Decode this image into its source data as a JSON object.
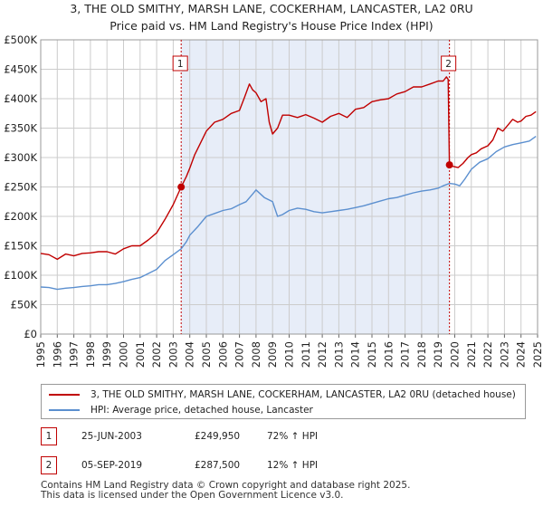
{
  "chart_data": {
    "type": "line",
    "title": "3, THE OLD SMITHY, MARSH LANE, COCKERHAM, LANCASTER, LA2 0RU",
    "subtitle": "Price paid vs. HM Land Registry's House Price Index (HPI)",
    "xlabel": "",
    "ylabel": "",
    "xlim": [
      1995,
      2025
    ],
    "ylim": [
      0,
      500000
    ],
    "x_ticks": [
      1995,
      1996,
      1997,
      1998,
      1999,
      2000,
      2001,
      2002,
      2003,
      2004,
      2005,
      2006,
      2007,
      2008,
      2009,
      2010,
      2011,
      2012,
      2013,
      2014,
      2015,
      2016,
      2017,
      2018,
      2019,
      2020,
      2021,
      2022,
      2023,
      2024,
      2025
    ],
    "y_ticks": [
      {
        "value": 0,
        "label": "£0"
      },
      {
        "value": 50000,
        "label": "£50K"
      },
      {
        "value": 100000,
        "label": "£100K"
      },
      {
        "value": 150000,
        "label": "£150K"
      },
      {
        "value": 200000,
        "label": "£200K"
      },
      {
        "value": 250000,
        "label": "£250K"
      },
      {
        "value": 300000,
        "label": "£300K"
      },
      {
        "value": 350000,
        "label": "£350K"
      },
      {
        "value": 400000,
        "label": "£400K"
      },
      {
        "value": 450000,
        "label": "£450K"
      },
      {
        "value": 500000,
        "label": "£500K"
      }
    ],
    "grid": true,
    "shaded_region": [
      2003.48,
      2019.68
    ],
    "series": [
      {
        "name": "3, THE OLD SMITHY, MARSH LANE, COCKERHAM, LANCASTER, LA2 0RU (detached house)",
        "color": "#c00000",
        "x": [
          1995,
          1995.5,
          1996,
          1996.5,
          1997,
          1997.5,
          1998,
          1998.5,
          1999,
          1999.5,
          2000,
          2000.5,
          2001,
          2001.5,
          2002,
          2002.5,
          2003,
          2003.48,
          2003.8,
          2004,
          2004.3,
          2004.6,
          2005,
          2005.5,
          2006,
          2006.5,
          2007,
          2007.3,
          2007.6,
          2007.8,
          2008,
          2008.3,
          2008.6,
          2008.8,
          2009,
          2009.3,
          2009.6,
          2010,
          2010.5,
          2011,
          2011.5,
          2012,
          2012.5,
          2013,
          2013.5,
          2014,
          2014.5,
          2015,
          2015.5,
          2016,
          2016.5,
          2017,
          2017.5,
          2018,
          2018.5,
          2019,
          2019.3,
          2019.5,
          2019.6,
          2019.68,
          2019.9,
          2020.2,
          2020.5,
          2020.8,
          2021,
          2021.3,
          2021.6,
          2022,
          2022.3,
          2022.6,
          2022.9,
          2023.2,
          2023.5,
          2023.8,
          2024,
          2024.3,
          2024.6,
          2024.9
        ],
        "y": [
          137000,
          135000,
          127000,
          136000,
          133000,
          137000,
          138000,
          140000,
          140000,
          136000,
          145000,
          150000,
          150000,
          160000,
          172000,
          195000,
          220000,
          249950,
          268000,
          282000,
          305000,
          322000,
          345000,
          360000,
          365000,
          375000,
          380000,
          402000,
          425000,
          415000,
          410000,
          395000,
          400000,
          360000,
          340000,
          350000,
          372000,
          372000,
          368000,
          373000,
          367000,
          360000,
          370000,
          375000,
          368000,
          382000,
          385000,
          395000,
          398000,
          400000,
          408000,
          412000,
          420000,
          420000,
          425000,
          430000,
          430000,
          437000,
          433000,
          287500,
          285000,
          283000,
          290000,
          300000,
          305000,
          308000,
          315000,
          320000,
          330000,
          350000,
          345000,
          355000,
          365000,
          360000,
          362000,
          370000,
          372000,
          378000
        ]
      },
      {
        "name": "HPI: Average price, detached house, Lancaster",
        "color": "#5b8fcf",
        "x": [
          1995,
          1995.5,
          1996,
          1996.5,
          1997,
          1997.5,
          1998,
          1998.5,
          1999,
          1999.5,
          2000,
          2000.5,
          2001,
          2001.5,
          2002,
          2002.5,
          2003,
          2003.48,
          2003.8,
          2004,
          2004.5,
          2005,
          2005.5,
          2006,
          2006.5,
          2007,
          2007.4,
          2007.8,
          2008,
          2008.5,
          2009,
          2009.3,
          2009.6,
          2010,
          2010.5,
          2011,
          2011.5,
          2012,
          2012.5,
          2013,
          2013.5,
          2014,
          2014.5,
          2015,
          2015.5,
          2016,
          2016.5,
          2017,
          2017.5,
          2018,
          2018.5,
          2019,
          2019.3,
          2019.68,
          2020,
          2020.3,
          2020.6,
          2021,
          2021.5,
          2022,
          2022.5,
          2023,
          2023.5,
          2024,
          2024.5,
          2024.9
        ],
        "y": [
          80000,
          79000,
          76000,
          78000,
          79000,
          81000,
          82000,
          84000,
          84000,
          86000,
          89000,
          93000,
          96000,
          103000,
          110000,
          125000,
          135000,
          145000,
          157000,
          168000,
          183000,
          200000,
          205000,
          210000,
          213000,
          220000,
          225000,
          238000,
          245000,
          232000,
          225000,
          200000,
          203000,
          210000,
          214000,
          212000,
          208000,
          206000,
          208000,
          210000,
          212000,
          215000,
          218000,
          222000,
          226000,
          230000,
          232000,
          236000,
          240000,
          243000,
          245000,
          248000,
          252000,
          256000,
          255000,
          252000,
          263000,
          280000,
          292000,
          298000,
          310000,
          318000,
          322000,
          325000,
          328000,
          336000
        ]
      }
    ],
    "annotations": [
      {
        "label": "1",
        "x": 2003.48,
        "y": 249950
      },
      {
        "label": "2",
        "x": 2019.68,
        "y": 287500
      }
    ]
  },
  "legend": {
    "items": [
      {
        "label": "3, THE OLD SMITHY, MARSH LANE, COCKERHAM, LANCASTER, LA2 0RU (detached house)",
        "color": "#c00000"
      },
      {
        "label": "HPI: Average price, detached house, Lancaster",
        "color": "#5b8fcf"
      }
    ]
  },
  "transactions": [
    {
      "num": "1",
      "date": "25-JUN-2003",
      "price": "£249,950",
      "hpi": "72% ↑ HPI"
    },
    {
      "num": "2",
      "date": "05-SEP-2019",
      "price": "£287,500",
      "hpi": "12% ↑ HPI"
    }
  ],
  "footer": {
    "line1": "Contains HM Land Registry data © Crown copyright and database right 2025.",
    "line2": "This data is licensed under the Open Government Licence v3.0."
  }
}
